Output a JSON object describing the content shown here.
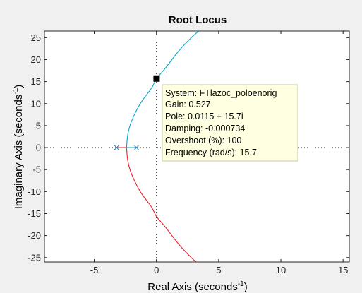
{
  "chart_data": {
    "type": "line",
    "title": "Root Locus",
    "xlabel_main": "Real Axis (seconds",
    "xlabel_exp": "-1",
    "xlabel_tail": ")",
    "ylabel_main": "Imaginary Axis (seconds",
    "ylabel_exp": "-1",
    "ylabel_tail": ")",
    "xlim": [
      -9,
      15.5
    ],
    "ylim": [
      -26,
      26.5
    ],
    "xticks": [
      -5,
      0,
      5,
      10,
      15
    ],
    "yticks": [
      -25,
      -20,
      -15,
      -10,
      -5,
      0,
      5,
      10,
      15,
      20,
      25
    ],
    "grid": false,
    "crosshair_lines": [
      {
        "orientation": "vertical",
        "x": 0
      },
      {
        "orientation": "horizontal",
        "y": 0
      }
    ],
    "poles": [
      {
        "x": -3.2,
        "y": 0
      },
      {
        "x": -1.6,
        "y": 0
      }
    ],
    "breakaway": {
      "x": -2.4,
      "y": 0
    },
    "series": [
      {
        "color": "#00a8c8",
        "points": [
          [
            -2.4,
            0
          ],
          [
            -2.3,
            3
          ],
          [
            -2.0,
            6
          ],
          [
            -1.3,
            10
          ],
          [
            -0.4,
            13.5
          ],
          [
            0.0115,
            15.7
          ],
          [
            0.7,
            18
          ],
          [
            1.8,
            22
          ],
          [
            2.8,
            25
          ],
          [
            3.6,
            27
          ]
        ]
      },
      {
        "color": "#e8202a",
        "points": [
          [
            -2.4,
            0
          ],
          [
            -2.3,
            -3
          ],
          [
            -2.0,
            -6
          ],
          [
            -1.3,
            -10
          ],
          [
            -0.4,
            -13.5
          ],
          [
            0.0115,
            -15.7
          ],
          [
            0.7,
            -18
          ],
          [
            1.8,
            -22
          ],
          [
            2.8,
            -25
          ],
          [
            3.6,
            -27
          ]
        ]
      },
      {
        "color": "#e8202a",
        "points": [
          [
            -3.2,
            0
          ],
          [
            -2.4,
            0
          ]
        ]
      },
      {
        "color": "#00a8c8",
        "points": [
          [
            -1.6,
            0
          ],
          [
            -2.4,
            0
          ]
        ]
      }
    ],
    "datatip": {
      "point": {
        "x": 0.0115,
        "y": 15.7
      },
      "lines": [
        "System: FTlazoc_poloenorig",
        "Gain: 0.527",
        "Pole: 0.0115 + 15.7i",
        "Damping: -0.000734",
        "Overshoot (%): 100",
        "Frequency (rad/s): 15.7"
      ]
    }
  }
}
